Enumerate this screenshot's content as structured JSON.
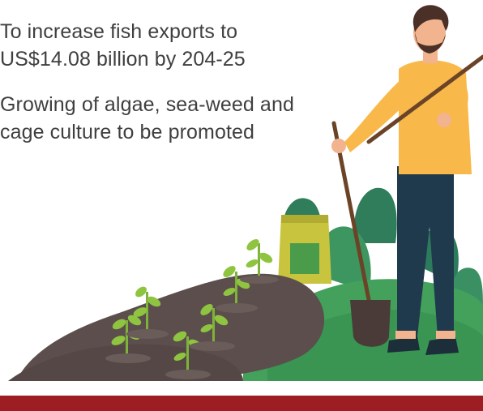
{
  "bullets": [
    "To increase fish exports to US$14.08 billion by 204-25",
    "Growing of algae, sea-weed and cage culture to be promoted"
  ],
  "illustration": {
    "subject": "farmer-with-shovel",
    "colors": {
      "soil": "#5b4e4c",
      "sprout": "#8fc440",
      "shirt": "#f9b84a",
      "pants": "#1f3a4d",
      "skin": "#f2b38f",
      "hair": "#4a3026",
      "bag": "#c9c43d",
      "bush_dark": "#2f7d5a",
      "bush_light": "#4aa465",
      "ground_green": "#43a15b",
      "banner": "#9c1d22"
    }
  }
}
